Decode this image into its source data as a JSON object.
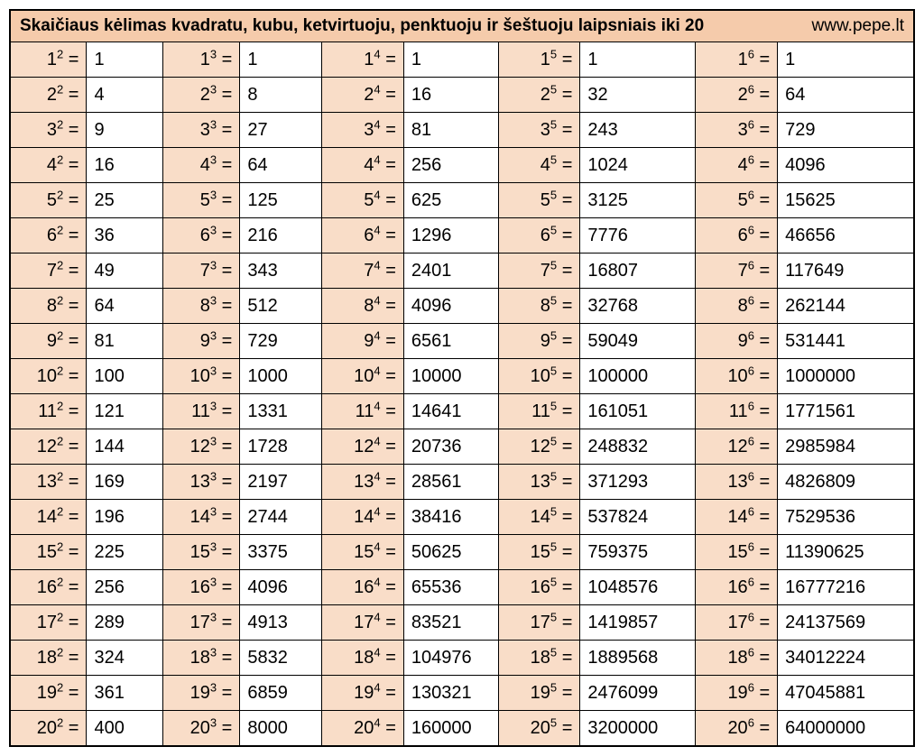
{
  "title": "Skaičiaus kėlimas kvadratu, kubu, ketvirtuoju, penktuoju ir šeštuoju laipsniais iki 20",
  "site": "www.pepe.lt",
  "colors": {
    "header_bg": "#f5cbab",
    "expr_bg": "#f9ddc8",
    "val_bg": "#ffffff",
    "border": "#000000",
    "text": "#000000"
  },
  "typography": {
    "header_fontsize": 19,
    "cell_fontsize": 20,
    "sup_scale": 0.65,
    "font_family": "Segoe UI, Arial, sans-serif"
  },
  "layout": {
    "type": "table",
    "columns": 10,
    "rows": 20,
    "col_widths_pct": [
      7.3,
      7.3,
      7.3,
      7.8,
      7.8,
      9.0,
      7.8,
      11.0,
      7.8,
      13.0
    ],
    "expr_align": "right",
    "val_align": "left"
  },
  "powers": [
    2,
    3,
    4,
    5,
    6
  ],
  "bases": [
    1,
    2,
    3,
    4,
    5,
    6,
    7,
    8,
    9,
    10,
    11,
    12,
    13,
    14,
    15,
    16,
    17,
    18,
    19,
    20
  ],
  "rowsData": [
    {
      "b": 1,
      "v": [
        1,
        1,
        1,
        1,
        1
      ]
    },
    {
      "b": 2,
      "v": [
        4,
        8,
        16,
        32,
        64
      ]
    },
    {
      "b": 3,
      "v": [
        9,
        27,
        81,
        243,
        729
      ]
    },
    {
      "b": 4,
      "v": [
        16,
        64,
        256,
        1024,
        4096
      ]
    },
    {
      "b": 5,
      "v": [
        25,
        125,
        625,
        3125,
        15625
      ]
    },
    {
      "b": 6,
      "v": [
        36,
        216,
        1296,
        7776,
        46656
      ]
    },
    {
      "b": 7,
      "v": [
        49,
        343,
        2401,
        16807,
        117649
      ]
    },
    {
      "b": 8,
      "v": [
        64,
        512,
        4096,
        32768,
        262144
      ]
    },
    {
      "b": 9,
      "v": [
        81,
        729,
        6561,
        59049,
        531441
      ]
    },
    {
      "b": 10,
      "v": [
        100,
        1000,
        10000,
        100000,
        1000000
      ]
    },
    {
      "b": 11,
      "v": [
        121,
        1331,
        14641,
        161051,
        1771561
      ]
    },
    {
      "b": 12,
      "v": [
        144,
        1728,
        20736,
        248832,
        2985984
      ]
    },
    {
      "b": 13,
      "v": [
        169,
        2197,
        28561,
        371293,
        4826809
      ]
    },
    {
      "b": 14,
      "v": [
        196,
        2744,
        38416,
        537824,
        7529536
      ]
    },
    {
      "b": 15,
      "v": [
        225,
        3375,
        50625,
        759375,
        11390625
      ]
    },
    {
      "b": 16,
      "v": [
        256,
        4096,
        65536,
        1048576,
        16777216
      ]
    },
    {
      "b": 17,
      "v": [
        289,
        4913,
        83521,
        1419857,
        24137569
      ]
    },
    {
      "b": 18,
      "v": [
        324,
        5832,
        104976,
        1889568,
        34012224
      ]
    },
    {
      "b": 19,
      "v": [
        361,
        6859,
        130321,
        2476099,
        47045881
      ]
    },
    {
      "b": 20,
      "v": [
        400,
        8000,
        160000,
        3200000,
        64000000
      ]
    }
  ]
}
